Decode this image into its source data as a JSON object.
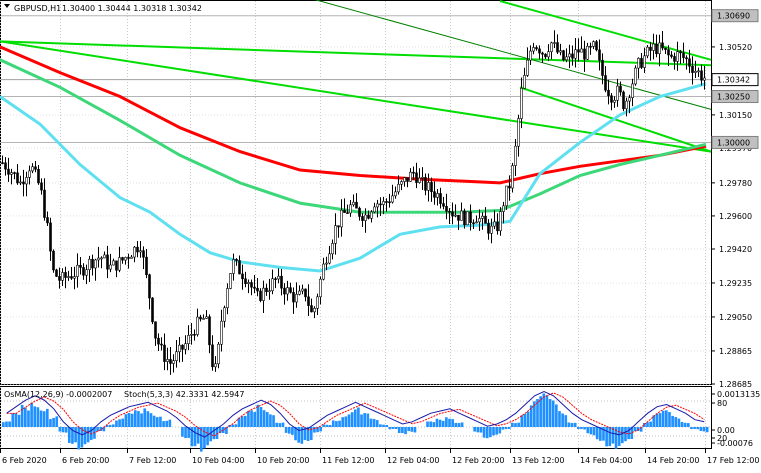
{
  "header": {
    "symbol": "GBPUSD,H1",
    "ohlc": "1.30400 1.30444 1.30318 1.30342"
  },
  "oscillator": {
    "osma_label": "OsMA(12,26,9) -0.0002007",
    "stoch_label": "Stoch(5,3,3) 42.3331 42.5947",
    "axis_labels": [
      "0.0013135",
      "80",
      "0.00",
      "20",
      "-0.00076"
    ]
  },
  "chart_data": {
    "type": "candlestick",
    "symbol": "GBPUSD",
    "timeframe": "H1",
    "y_axis_labels": [
      "1.30690",
      "1.30520",
      "1.30342",
      "1.30250",
      "1.30150",
      "1.30000",
      "1.29970",
      "1.29780",
      "1.29600",
      "1.29420",
      "1.29235",
      "1.29050",
      "1.28865",
      "1.28685"
    ],
    "highlighted_prices": {
      "current": "1.30342",
      "level_1": "1.30690",
      "level_2": "1.30250",
      "level_3": "1.30000"
    },
    "ylim": [
      1.28685,
      1.3077
    ],
    "x_tick_labels": [
      "6 Feb 2020",
      "6 Feb 20:00",
      "7 Feb 12:00",
      "10 Feb 04:00",
      "10 Feb 20:00",
      "11 Feb 12:00",
      "12 Feb 04:00",
      "12 Feb 20:00",
      "13 Feb 12:00",
      "14 Feb 04:00",
      "14 Feb 20:00",
      "17 Feb 12:00"
    ],
    "price_path": [
      [
        0,
        1.299
      ],
      [
        10,
        1.2985
      ],
      [
        20,
        1.2978
      ],
      [
        30,
        1.2988
      ],
      [
        40,
        1.2975
      ],
      [
        48,
        1.295
      ],
      [
        52,
        1.293
      ],
      [
        60,
        1.2925
      ],
      [
        70,
        1.2928
      ],
      [
        80,
        1.293
      ],
      [
        90,
        1.2935
      ],
      [
        100,
        1.2938
      ],
      [
        110,
        1.2932
      ],
      [
        120,
        1.2935
      ],
      [
        130,
        1.294
      ],
      [
        140,
        1.2945
      ],
      [
        148,
        1.292
      ],
      [
        155,
        1.2895
      ],
      [
        162,
        1.2885
      ],
      [
        170,
        1.288
      ],
      [
        178,
        1.2885
      ],
      [
        185,
        1.289
      ],
      [
        195,
        1.29
      ],
      [
        205,
        1.2905
      ],
      [
        212,
        1.288
      ],
      [
        216,
        1.2875
      ],
      [
        220,
        1.29
      ],
      [
        226,
        1.292
      ],
      [
        232,
        1.2935
      ],
      [
        240,
        1.293
      ],
      [
        248,
        1.2925
      ],
      [
        256,
        1.2915
      ],
      [
        265,
        1.292
      ],
      [
        275,
        1.2925
      ],
      [
        285,
        1.292
      ],
      [
        295,
        1.2915
      ],
      [
        305,
        1.2918
      ],
      [
        312,
        1.2905
      ],
      [
        318,
        1.292
      ],
      [
        324,
        1.2935
      ],
      [
        330,
        1.2945
      ],
      [
        336,
        1.2955
      ],
      [
        342,
        1.296
      ],
      [
        350,
        1.2965
      ],
      [
        358,
        1.2962
      ],
      [
        366,
        1.296
      ],
      [
        374,
        1.2968
      ],
      [
        382,
        1.2966
      ],
      [
        390,
        1.297
      ],
      [
        398,
        1.2975
      ],
      [
        406,
        1.298
      ],
      [
        414,
        1.2984
      ],
      [
        420,
        1.2978
      ],
      [
        428,
        1.2975
      ],
      [
        436,
        1.2972
      ],
      [
        444,
        1.2968
      ],
      [
        452,
        1.2962
      ],
      [
        460,
        1.296
      ],
      [
        468,
        1.2958
      ],
      [
        476,
        1.296
      ],
      [
        484,
        1.2955
      ],
      [
        492,
        1.2952
      ],
      [
        498,
        1.2955
      ],
      [
        504,
        1.297
      ],
      [
        510,
        1.2978
      ],
      [
        516,
        1.3
      ],
      [
        520,
        1.3025
      ],
      [
        526,
        1.304
      ],
      [
        532,
        1.3055
      ],
      [
        538,
        1.3052
      ],
      [
        544,
        1.3048
      ],
      [
        550,
        1.3055
      ],
      [
        556,
        1.305
      ],
      [
        562,
        1.3045
      ],
      [
        570,
        1.3046
      ],
      [
        578,
        1.305
      ],
      [
        586,
        1.3048
      ],
      [
        594,
        1.3052
      ],
      [
        600,
        1.304
      ],
      [
        606,
        1.303
      ],
      [
        612,
        1.3025
      ],
      [
        618,
        1.3028
      ],
      [
        624,
        1.302
      ],
      [
        630,
        1.303
      ],
      [
        638,
        1.3042
      ],
      [
        646,
        1.3048
      ],
      [
        654,
        1.3052
      ],
      [
        662,
        1.305
      ],
      [
        670,
        1.3046
      ],
      [
        678,
        1.3048
      ],
      [
        686,
        1.3045
      ],
      [
        694,
        1.304
      ],
      [
        702,
        1.3036
      ],
      [
        708,
        1.3034
      ]
    ],
    "moving_averages": [
      {
        "color": "#ff0000",
        "values": [
          [
            0,
            1.3052
          ],
          [
            60,
            1.3038
          ],
          [
            120,
            1.3025
          ],
          [
            180,
            1.3008
          ],
          [
            240,
            1.2995
          ],
          [
            300,
            1.2985
          ],
          [
            360,
            1.2982
          ],
          [
            420,
            1.298
          ],
          [
            460,
            1.2979
          ],
          [
            500,
            1.2978
          ],
          [
            540,
            1.2983
          ],
          [
            580,
            1.2987
          ],
          [
            620,
            1.299
          ],
          [
            660,
            1.2993
          ],
          [
            706,
            1.2998
          ]
        ]
      },
      {
        "color": "#3cd778",
        "values": [
          [
            0,
            1.3045
          ],
          [
            60,
            1.303
          ],
          [
            120,
            1.3012
          ],
          [
            180,
            1.2993
          ],
          [
            240,
            1.2978
          ],
          [
            300,
            1.2967
          ],
          [
            360,
            1.2962
          ],
          [
            420,
            1.2962
          ],
          [
            460,
            1.2962
          ],
          [
            500,
            1.2963
          ],
          [
            540,
            1.2972
          ],
          [
            580,
            1.2982
          ],
          [
            620,
            1.2988
          ],
          [
            660,
            1.2993
          ],
          [
            706,
            1.2999
          ]
        ]
      },
      {
        "color": "#5ee0f0",
        "values": [
          [
            0,
            1.3025
          ],
          [
            40,
            1.301
          ],
          [
            80,
            1.2988
          ],
          [
            120,
            1.297
          ],
          [
            150,
            1.2962
          ],
          [
            180,
            1.295
          ],
          [
            210,
            1.294
          ],
          [
            240,
            1.2935
          ],
          [
            280,
            1.2932
          ],
          [
            320,
            1.293
          ],
          [
            360,
            1.2937
          ],
          [
            400,
            1.295
          ],
          [
            440,
            1.2954
          ],
          [
            480,
            1.2955
          ],
          [
            510,
            1.2957
          ],
          [
            540,
            1.2983
          ],
          [
            580,
            1.3
          ],
          [
            620,
            1.3015
          ],
          [
            660,
            1.3025
          ],
          [
            706,
            1.3032
          ]
        ]
      }
    ],
    "channel_lines": [
      {
        "color": "#00dd00",
        "from": [
          0,
          1.3055
        ],
        "to": [
          711,
          1.3042
        ]
      },
      {
        "color": "#00dd00",
        "from": [
          0,
          1.3055
        ],
        "to": [
          711,
          1.2995
        ]
      },
      {
        "color": "#00dd00",
        "from": [
          500,
          1.3077
        ],
        "to": [
          711,
          1.3045
        ]
      },
      {
        "color": "#00dd00",
        "from": [
          520,
          1.303
        ],
        "to": [
          711,
          1.2995
        ]
      },
      {
        "color": "#008000",
        "from": [
          300,
          1.308
        ],
        "to": [
          711,
          1.3018
        ]
      }
    ],
    "histogram_values": [
      0.2,
      0.5,
      0.8,
      1.0,
      0.8,
      0.4,
      -0.2,
      -0.6,
      -0.8,
      -0.6,
      -0.2,
      0.1,
      0.3,
      0.5,
      0.6,
      0.7,
      0.5,
      0.3,
      0.0,
      -0.4,
      -0.7,
      -0.9,
      -0.6,
      -0.3,
      0.1,
      0.4,
      0.6,
      0.8,
      0.6,
      0.2,
      -0.3,
      -0.6,
      -0.5,
      -0.2,
      0.1,
      0.3,
      0.5,
      0.7,
      0.5,
      0.3,
      0.1,
      -0.1,
      -0.3,
      -0.2,
      0.0,
      0.2,
      0.3,
      0.4,
      0.2,
      0.0,
      -0.2,
      -0.4,
      -0.3,
      -0.1,
      0.2,
      0.6,
      1.0,
      1.2,
      1.0,
      0.6,
      0.2,
      -0.1,
      -0.3,
      -0.5,
      -0.7,
      -0.8,
      -0.6,
      -0.2,
      0.2,
      0.5,
      0.6,
      0.4,
      0.2,
      -0.1,
      -0.2
    ]
  }
}
